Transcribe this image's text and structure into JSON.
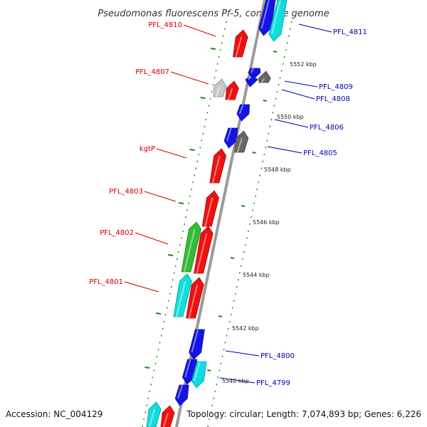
{
  "title": "Pseudomonas fluorescens Pf-5, complete genome",
  "accession": "Accession: NC_004129",
  "topology": "Topology: circular; Length: 7,074,893 bp; Genes: 6,226",
  "colors": {
    "forward_label": "#cc0000",
    "reverse_label": "#0000aa",
    "backbone": "#9a9a9a",
    "tick": "#1a8a1a",
    "red": "#ee1111",
    "blue": "#1414e6",
    "cyan": "#11dddd",
    "green": "#33bb33",
    "gray": "#666666",
    "lightgray": "#c8c8c8"
  },
  "kbp_labels": [
    "5552 kbp",
    "5550 kbp",
    "5548 kbp",
    "5546 kbp",
    "5544 kbp",
    "5542 kbp",
    "5540 kbp"
  ],
  "forward_genes": [
    {
      "label": "PFL_4810",
      "color": "red"
    },
    {
      "label": "PFL_4807",
      "color": "red"
    },
    {
      "label": "kgtP",
      "color": "red"
    },
    {
      "label": "PFL_4803",
      "color": "red"
    },
    {
      "label": "PFL_4802",
      "color": "green"
    },
    {
      "label": "PFL_4801",
      "color": "cyan"
    }
  ],
  "reverse_genes": [
    {
      "label": "PFL_4811",
      "color": "cyan"
    },
    {
      "label": "PFL_4809",
      "color": "gray"
    },
    {
      "label": "PFL_4808",
      "color": "blue"
    },
    {
      "label": "PFL_4806",
      "color": "blue"
    },
    {
      "label": "PFL_4805",
      "color": "gray"
    },
    {
      "label": "PFL_4800",
      "color": "blue"
    },
    {
      "label": "PFL_4799",
      "color": "cyan"
    }
  ]
}
